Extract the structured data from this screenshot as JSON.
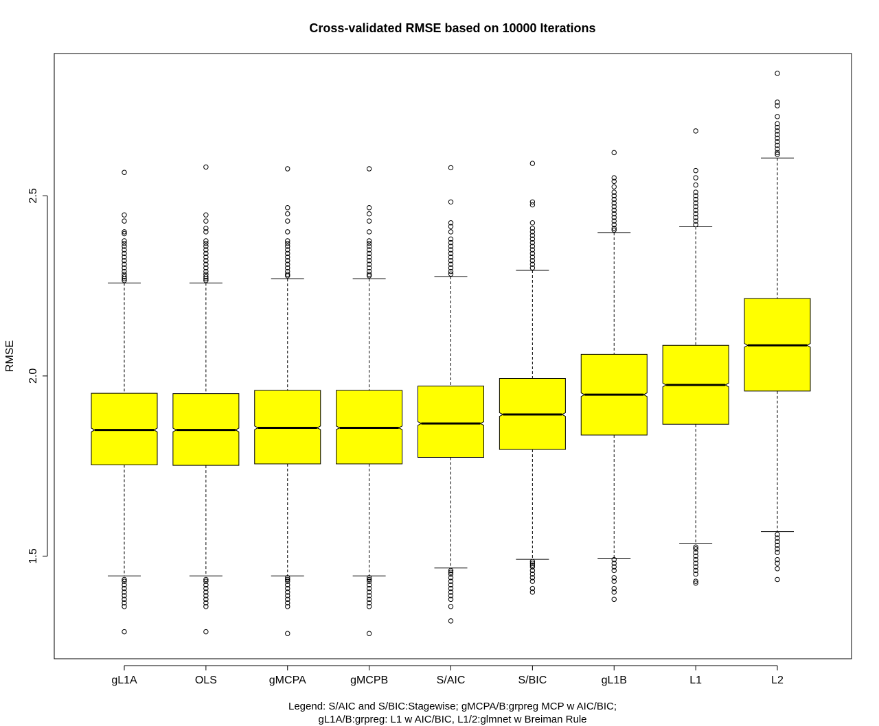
{
  "chart_data": {
    "type": "boxplot",
    "title": "Cross-validated RMSE based on 10000 Iterations",
    "xlabel": "",
    "ylabel": "RMSE",
    "ylim": [
      1.215,
      2.895
    ],
    "yticks": [
      1.5,
      2.0,
      2.5
    ],
    "ytick_labels": [
      "1.5",
      "2.0",
      "2.5"
    ],
    "notched": true,
    "box_color": "#ffff00",
    "categories": [
      "gL1A",
      "OLS",
      "gMCPA",
      "gMCPB",
      "S/AIC",
      "S/BIC",
      "gL1B",
      "L1",
      "L2"
    ],
    "boxes": [
      {
        "lower_whisker": 1.445,
        "q1": 1.753,
        "median": 1.85,
        "q3": 1.952,
        "upper_whisker": 2.258,
        "notch_low": 1.845,
        "notch_high": 1.855,
        "outliers": [
          2.565,
          2.447,
          2.43,
          2.4,
          2.395,
          2.375,
          2.368,
          2.36,
          2.35,
          2.34,
          2.33,
          2.32,
          2.31,
          2.3,
          2.29,
          2.282,
          2.275,
          2.27,
          2.265,
          1.435,
          1.43,
          1.42,
          1.41,
          1.4,
          1.39,
          1.38,
          1.37,
          1.36,
          1.29
        ]
      },
      {
        "lower_whisker": 1.445,
        "q1": 1.752,
        "median": 1.85,
        "q3": 1.951,
        "upper_whisker": 2.258,
        "notch_low": 1.845,
        "notch_high": 1.855,
        "outliers": [
          2.58,
          2.447,
          2.43,
          2.41,
          2.4,
          2.375,
          2.368,
          2.36,
          2.35,
          2.34,
          2.33,
          2.32,
          2.31,
          2.3,
          2.29,
          2.282,
          2.275,
          2.27,
          2.265,
          1.435,
          1.43,
          1.42,
          1.41,
          1.4,
          1.39,
          1.38,
          1.37,
          1.36,
          1.29
        ]
      },
      {
        "lower_whisker": 1.445,
        "q1": 1.756,
        "median": 1.856,
        "q3": 1.96,
        "upper_whisker": 2.27,
        "notch_low": 1.851,
        "notch_high": 1.861,
        "outliers": [
          2.575,
          2.467,
          2.45,
          2.43,
          2.4,
          2.375,
          2.368,
          2.36,
          2.35,
          2.34,
          2.33,
          2.32,
          2.31,
          2.3,
          2.29,
          2.282,
          2.278,
          1.44,
          1.435,
          1.43,
          1.42,
          1.41,
          1.4,
          1.39,
          1.38,
          1.37,
          1.36,
          1.285
        ]
      },
      {
        "lower_whisker": 1.445,
        "q1": 1.756,
        "median": 1.856,
        "q3": 1.96,
        "upper_whisker": 2.27,
        "notch_low": 1.851,
        "notch_high": 1.861,
        "outliers": [
          2.575,
          2.467,
          2.45,
          2.43,
          2.4,
          2.375,
          2.368,
          2.36,
          2.35,
          2.34,
          2.33,
          2.32,
          2.31,
          2.3,
          2.29,
          2.282,
          2.278,
          1.44,
          1.435,
          1.43,
          1.42,
          1.41,
          1.4,
          1.39,
          1.38,
          1.37,
          1.36,
          1.285
        ]
      },
      {
        "lower_whisker": 1.467,
        "q1": 1.774,
        "median": 1.868,
        "q3": 1.972,
        "upper_whisker": 2.276,
        "notch_low": 1.863,
        "notch_high": 1.873,
        "outliers": [
          2.578,
          2.483,
          2.425,
          2.415,
          2.4,
          2.38,
          2.37,
          2.36,
          2.35,
          2.34,
          2.33,
          2.32,
          2.31,
          2.3,
          2.29,
          2.283,
          1.46,
          1.455,
          1.45,
          1.44,
          1.43,
          1.42,
          1.41,
          1.4,
          1.39,
          1.38,
          1.36,
          1.32
        ]
      },
      {
        "lower_whisker": 1.491,
        "q1": 1.796,
        "median": 1.893,
        "q3": 1.993,
        "upper_whisker": 2.293,
        "notch_low": 1.888,
        "notch_high": 1.898,
        "outliers": [
          2.59,
          2.483,
          2.475,
          2.425,
          2.41,
          2.4,
          2.39,
          2.38,
          2.37,
          2.36,
          2.35,
          2.34,
          2.33,
          2.32,
          2.31,
          2.3,
          1.485,
          1.48,
          1.475,
          1.47,
          1.46,
          1.45,
          1.44,
          1.43,
          1.41,
          1.4
        ]
      },
      {
        "lower_whisker": 1.494,
        "q1": 1.836,
        "median": 1.948,
        "q3": 2.06,
        "upper_whisker": 2.398,
        "notch_low": 1.943,
        "notch_high": 1.953,
        "outliers": [
          2.62,
          2.55,
          2.54,
          2.525,
          2.51,
          2.5,
          2.49,
          2.48,
          2.47,
          2.46,
          2.45,
          2.44,
          2.43,
          2.42,
          2.41,
          2.405,
          1.49,
          1.48,
          1.47,
          1.46,
          1.44,
          1.43,
          1.41,
          1.4,
          1.38
        ]
      },
      {
        "lower_whisker": 1.534,
        "q1": 1.866,
        "median": 1.975,
        "q3": 2.085,
        "upper_whisker": 2.414,
        "notch_low": 1.97,
        "notch_high": 1.98,
        "outliers": [
          2.68,
          2.57,
          2.55,
          2.53,
          2.51,
          2.5,
          2.49,
          2.48,
          2.47,
          2.46,
          2.45,
          2.44,
          2.43,
          2.42,
          1.525,
          1.52,
          1.51,
          1.5,
          1.49,
          1.48,
          1.47,
          1.46,
          1.45,
          1.43,
          1.425
        ]
      },
      {
        "lower_whisker": 1.568,
        "q1": 1.958,
        "median": 2.085,
        "q3": 2.215,
        "upper_whisker": 2.605,
        "notch_low": 2.08,
        "notch_high": 2.09,
        "outliers": [
          2.84,
          2.76,
          2.75,
          2.72,
          2.7,
          2.69,
          2.68,
          2.67,
          2.66,
          2.65,
          2.64,
          2.63,
          2.62,
          2.615,
          1.56,
          1.55,
          1.54,
          1.53,
          1.52,
          1.51,
          1.49,
          1.48,
          1.465,
          1.435
        ]
      }
    ],
    "caption_lines": [
      "Legend: S/AIC and S/BIC:Stagewise; gMCPA/B:grpreg MCP w AIC/BIC;",
      "gL1A/B:grpreg: L1 w AIC/BIC, L1/2:glmnet w Breiman Rule"
    ]
  }
}
